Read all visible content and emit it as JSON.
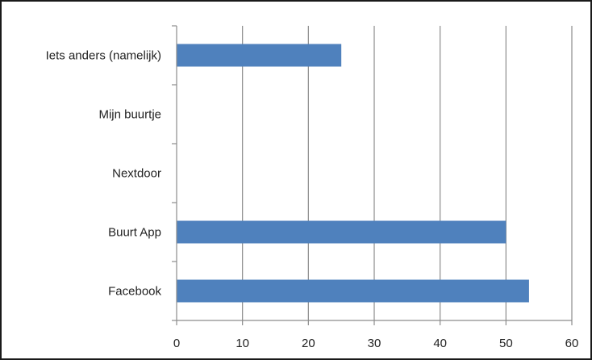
{
  "chart_data": {
    "type": "bar",
    "orientation": "horizontal",
    "categories": [
      "Iets anders (namelijk)",
      "Mijn buurtje",
      "Nextdoor",
      "Buurt App",
      "Facebook"
    ],
    "values": [
      25,
      0,
      0,
      50,
      53.5
    ],
    "xlim": [
      0,
      60
    ],
    "xticks": [
      "0",
      "10",
      "20",
      "30",
      "40",
      "50",
      "60"
    ],
    "xtick_values": [
      0,
      10,
      20,
      30,
      40,
      50,
      60
    ],
    "grid": "vertical",
    "legend": "none",
    "bar_color": "#4f81bd",
    "gridline_color": "#8c8c8c"
  }
}
